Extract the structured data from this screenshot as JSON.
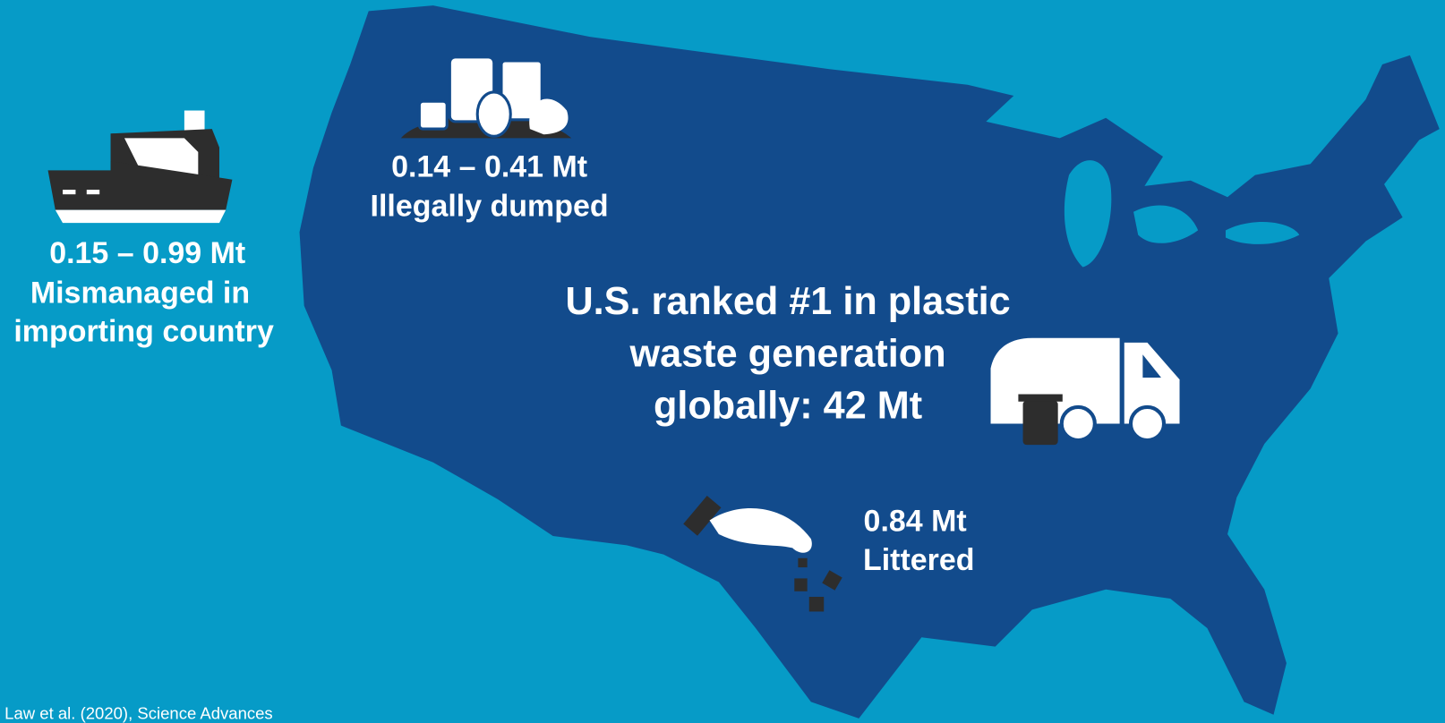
{
  "callouts": [
    {
      "amount": "0.15 – 0.99 Mt",
      "label": [
        "Mismanaged in",
        "importing country"
      ]
    },
    {
      "amount": "0.14 – 0.41 Mt",
      "label": [
        "Illegally dumped"
      ]
    },
    {
      "amount": "0.84 Mt",
      "label": [
        "Littered"
      ]
    }
  ],
  "headline": [
    "U.S. ranked #1 in plastic",
    "waste generation",
    "globally: 42 Mt"
  ],
  "source": "Law et al. (2020), Science Advances"
}
